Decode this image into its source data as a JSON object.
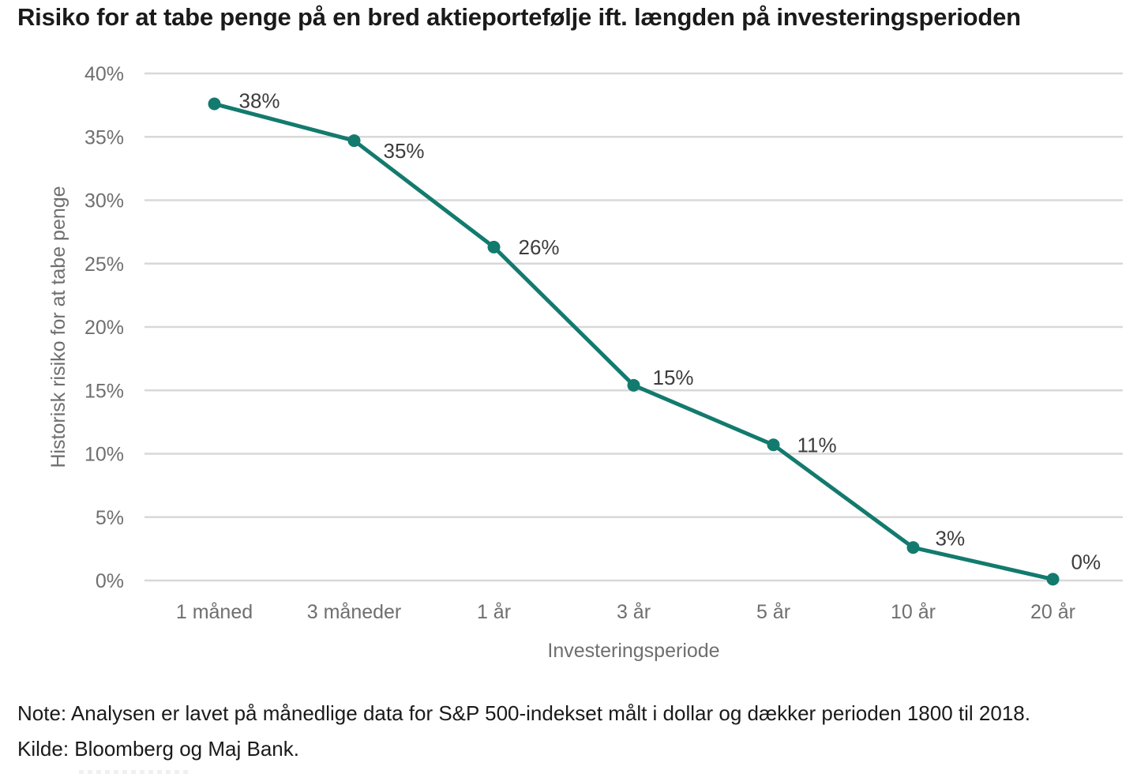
{
  "page": {
    "title": "Risiko for at tabe penge på en bred aktieportefølje ift. længden på investeringsperioden",
    "note": "Note: Analysen er lavet på månedlige data for S&P 500-indekset målt i dollar og dækker perioden 1800 til 2018.",
    "source": "Kilde: Bloomberg og Maj Bank."
  },
  "chart_data": {
    "type": "line",
    "title": "Risiko for at tabe penge på en bred aktieportefølje ift. længden på investeringsperioden",
    "categories": [
      "1 måned",
      "3 måneder",
      "1 år",
      "3 år",
      "5 år",
      "10 år",
      "20 år"
    ],
    "values": [
      38,
      35,
      26,
      15,
      11,
      3,
      0
    ],
    "plotted_values": [
      37.6,
      34.7,
      26.3,
      15.4,
      10.7,
      2.6,
      0.1
    ],
    "point_labels": [
      "38%",
      "35%",
      "26%",
      "15%",
      "11%",
      "3%",
      "0%"
    ],
    "xlabel": "Investeringsperiode",
    "ylabel": "Historisk risiko for at tabe penge",
    "y_ticks": [
      "0%",
      "5%",
      "10%",
      "15%",
      "20%",
      "25%",
      "30%",
      "35%",
      "40%"
    ],
    "y_tick_values": [
      0,
      5,
      10,
      15,
      20,
      25,
      30,
      35,
      40
    ],
    "ylim": [
      0,
      40
    ],
    "grid": "horizontal-only",
    "legend": "none",
    "colors": {
      "line": "#137a6e",
      "marker": "#137a6e",
      "gridline": "#d8d8d8",
      "tick_label": "#6f6f6f",
      "axis_title": "#6f6f6f",
      "data_label": "#3d3d3d",
      "title_text": "#1a1a1a"
    }
  }
}
